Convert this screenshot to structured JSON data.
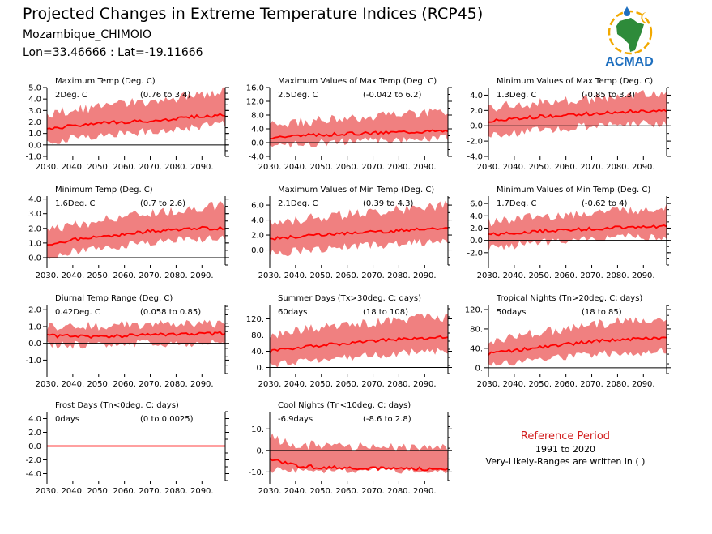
{
  "header": {
    "title": "Projected Changes in Extreme Temperature Indices (RCP45)",
    "location": "Mozambique_CHIMOIO",
    "coords": "Lon=33.46666 : Lat=-19.11666"
  },
  "logo": {
    "text": "ACMAD",
    "icon": "africa-map-logo-icon"
  },
  "reference": {
    "title": "Reference Period",
    "years": "1991 to 2020",
    "note": "Very-Likely-Ranges are written in ( )"
  },
  "colors": {
    "line": "#ff0000",
    "band": "#f08080",
    "zero": "#000000",
    "accent": "#d21e1e"
  },
  "x_ticks": [
    "2030.",
    "2040.",
    "2050.",
    "2060.",
    "2070.",
    "2080.",
    "2090."
  ],
  "chart_data": [
    {
      "type": "area",
      "title": "Maximum Temp (Deg. C)",
      "mean_label": "2Deg. C",
      "range_label": "(0.76 to 3.4)",
      "xlim": [
        2030,
        2099
      ],
      "ylim": [
        -1.0,
        5.0
      ],
      "yticks": [
        "5.0",
        "4.0",
        "3.0",
        "2.0",
        "1.0",
        "0.0",
        "-1.0"
      ],
      "ytick_values": [
        5,
        4,
        3,
        2,
        1,
        0,
        -1
      ],
      "x": [
        2030,
        2040,
        2050,
        2060,
        2070,
        2080,
        2090,
        2099
      ],
      "series": [
        {
          "values": [
            1.3,
            1.7,
            1.9,
            2.0,
            2.1,
            2.3,
            2.5,
            2.6
          ]
        },
        {
          "name": "low",
          "values": [
            0.2,
            0.6,
            0.8,
            1.0,
            1.2,
            1.4,
            1.6,
            1.8
          ]
        },
        {
          "name": "high",
          "values": [
            2.7,
            3.0,
            3.3,
            3.6,
            3.8,
            4.1,
            4.4,
            4.7
          ]
        }
      ]
    },
    {
      "type": "area",
      "title": "Maximum Values of Max Temp (Deg. C)",
      "mean_label": "2.5Deg. C",
      "range_label": "(-0.042 to 6.2)",
      "xlim": [
        2030,
        2099
      ],
      "ylim": [
        -4.0,
        16.0
      ],
      "yticks": [
        "16.0",
        "12.0",
        "8.0",
        "4.0",
        "0.0",
        "-4.0"
      ],
      "ytick_values": [
        16,
        12,
        8,
        4,
        0,
        -4
      ],
      "x": [
        2030,
        2040,
        2050,
        2060,
        2070,
        2080,
        2090,
        2099
      ],
      "series": [
        {
          "values": [
            1.6,
            2.0,
            2.3,
            2.6,
            2.8,
            3.1,
            3.3,
            3.4
          ]
        },
        {
          "name": "low",
          "values": [
            -1.0,
            -0.5,
            0.0,
            0.3,
            0.5,
            0.8,
            1.0,
            1.2
          ]
        },
        {
          "name": "high",
          "values": [
            5.0,
            6.0,
            6.5,
            7.0,
            7.5,
            8.0,
            8.5,
            9.0
          ]
        }
      ]
    },
    {
      "type": "area",
      "title": "Minimum Values of Max Temp (Deg. C)",
      "mean_label": "1.3Deg. C",
      "range_label": "(-0.85 to 3.3)",
      "xlim": [
        2030,
        2099
      ],
      "ylim": [
        -4.0,
        5.0
      ],
      "yticks": [
        "4.0",
        "2.0",
        "0.0",
        "-2.0",
        "-4.0"
      ],
      "ytick_values": [
        4,
        2,
        0,
        -2,
        -4
      ],
      "x": [
        2030,
        2040,
        2050,
        2060,
        2070,
        2080,
        2090,
        2099
      ],
      "series": [
        {
          "values": [
            0.6,
            0.9,
            1.2,
            1.4,
            1.6,
            1.8,
            1.9,
            1.9
          ]
        },
        {
          "name": "low",
          "values": [
            -1.3,
            -1.0,
            -0.6,
            -0.3,
            0.0,
            0.2,
            0.3,
            0.3
          ]
        },
        {
          "name": "high",
          "values": [
            2.4,
            2.8,
            3.0,
            3.3,
            3.5,
            3.8,
            4.0,
            4.2
          ]
        }
      ]
    },
    {
      "type": "area",
      "title": "Minimum Temp (Deg. C)",
      "mean_label": "1.6Deg. C",
      "range_label": "(0.7 to 2.6)",
      "xlim": [
        2030,
        2099
      ],
      "ylim": [
        -0.5,
        4.2
      ],
      "yticks": [
        "4.0",
        "3.0",
        "2.0",
        "1.0",
        "0.0"
      ],
      "ytick_values": [
        4,
        3,
        2,
        1,
        0
      ],
      "x": [
        2030,
        2040,
        2050,
        2060,
        2070,
        2080,
        2090,
        2099
      ],
      "series": [
        {
          "values": [
            0.9,
            1.2,
            1.4,
            1.6,
            1.8,
            1.9,
            2.0,
            2.0
          ]
        },
        {
          "name": "low",
          "values": [
            0.1,
            0.4,
            0.6,
            0.8,
            1.0,
            1.2,
            1.3,
            1.4
          ]
        },
        {
          "name": "high",
          "values": [
            1.8,
            2.2,
            2.5,
            2.8,
            3.0,
            3.2,
            3.4,
            3.6
          ]
        }
      ]
    },
    {
      "type": "area",
      "title": "Maximum Values of Min Temp (Deg. C)",
      "mean_label": "2.1Deg. C",
      "range_label": "(0.39 to 4.3)",
      "xlim": [
        2030,
        2099
      ],
      "ylim": [
        -2.0,
        7.2
      ],
      "yticks": [
        "6.0",
        "4.0",
        "2.0",
        "0.0"
      ],
      "ytick_values": [
        6,
        4,
        2,
        0
      ],
      "x": [
        2030,
        2040,
        2050,
        2060,
        2070,
        2080,
        2090,
        2099
      ],
      "series": [
        {
          "values": [
            1.5,
            1.8,
            2.0,
            2.2,
            2.4,
            2.6,
            2.8,
            3.0
          ]
        },
        {
          "name": "low",
          "values": [
            -0.5,
            -0.2,
            0.1,
            0.4,
            0.6,
            0.8,
            1.0,
            1.2
          ]
        },
        {
          "name": "high",
          "values": [
            3.6,
            4.0,
            4.4,
            4.8,
            5.1,
            5.4,
            5.7,
            6.0
          ]
        }
      ]
    },
    {
      "type": "area",
      "title": "Minimum Values of Min Temp (Deg. C)",
      "mean_label": "1.7Deg. C",
      "range_label": "(-0.62 to 4)",
      "xlim": [
        2030,
        2099
      ],
      "ylim": [
        -4.0,
        7.2
      ],
      "yticks": [
        "6.0",
        "4.0",
        "2.0",
        "0.0",
        "-2.0"
      ],
      "ytick_values": [
        6,
        4,
        2,
        0,
        -2
      ],
      "x": [
        2030,
        2040,
        2050,
        2060,
        2070,
        2080,
        2090,
        2099
      ],
      "series": [
        {
          "values": [
            0.9,
            1.2,
            1.5,
            1.7,
            1.9,
            2.1,
            2.3,
            2.3
          ]
        },
        {
          "name": "low",
          "values": [
            -1.2,
            -0.8,
            -0.4,
            -0.1,
            0.2,
            0.4,
            0.6,
            0.6
          ]
        },
        {
          "name": "high",
          "values": [
            3.0,
            3.4,
            3.8,
            4.2,
            4.5,
            4.8,
            5.1,
            5.3
          ]
        }
      ]
    },
    {
      "type": "area",
      "title": "Diurnal Temp Range (Deg. C)",
      "mean_label": "0.42Deg. C",
      "range_label": "(0.058 to 0.85)",
      "xlim": [
        2030,
        2099
      ],
      "ylim": [
        -1.8,
        2.3
      ],
      "yticks": [
        "2.0",
        "1.0",
        "0.0",
        "-1.0"
      ],
      "ytick_values": [
        2,
        1,
        0,
        -1
      ],
      "x": [
        2030,
        2040,
        2050,
        2060,
        2070,
        2080,
        2090,
        2099
      ],
      "series": [
        {
          "values": [
            0.45,
            0.45,
            0.4,
            0.45,
            0.5,
            0.5,
            0.55,
            0.6
          ]
        },
        {
          "name": "low",
          "values": [
            -0.1,
            -0.1,
            -0.1,
            0.0,
            0.0,
            0.0,
            0.0,
            0.1
          ]
        },
        {
          "name": "high",
          "values": [
            1.0,
            1.0,
            1.0,
            1.1,
            1.1,
            1.1,
            1.2,
            1.2
          ]
        }
      ]
    },
    {
      "type": "area",
      "title": "Summer Days (Tx>30deg. C; days)",
      "mean_label": "60days",
      "range_label": "(18 to 108)",
      "xlim": [
        2030,
        2099
      ],
      "ylim": [
        -15,
        155
      ],
      "yticks": [
        "120.",
        "80.",
        "40.",
        "0."
      ],
      "ytick_values": [
        120,
        80,
        40,
        0
      ],
      "x": [
        2030,
        2040,
        2050,
        2060,
        2070,
        2080,
        2090,
        2099
      ],
      "series": [
        {
          "values": [
            40,
            48,
            55,
            60,
            65,
            70,
            72,
            75
          ]
        },
        {
          "name": "low",
          "values": [
            5,
            15,
            20,
            25,
            30,
            35,
            38,
            40
          ]
        },
        {
          "name": "high",
          "values": [
            80,
            90,
            98,
            105,
            110,
            118,
            122,
            125
          ]
        }
      ]
    },
    {
      "type": "area",
      "title": "Tropical Nights (Tn>20deg. C; days)",
      "mean_label": "50days",
      "range_label": "(18 to 85)",
      "xlim": [
        2030,
        2099
      ],
      "ylim": [
        -12,
        130
      ],
      "yticks": [
        "120.",
        "80.",
        "40.",
        "0."
      ],
      "ytick_values": [
        120,
        80,
        40,
        0
      ],
      "x": [
        2030,
        2040,
        2050,
        2060,
        2070,
        2080,
        2090,
        2099
      ],
      "series": [
        {
          "values": [
            28,
            36,
            42,
            48,
            54,
            58,
            60,
            62
          ]
        },
        {
          "name": "low",
          "values": [
            5,
            12,
            18,
            22,
            26,
            30,
            32,
            34
          ]
        },
        {
          "name": "high",
          "values": [
            55,
            65,
            72,
            80,
            88,
            95,
            100,
            105
          ]
        }
      ]
    },
    {
      "type": "area",
      "title": "Frost Days (Tn<0deg. C; days)",
      "mean_label": "0days",
      "range_label": "(0 to 0.0025)",
      "xlim": [
        2030,
        2099
      ],
      "ylim": [
        -5.0,
        5.0
      ],
      "yticks": [
        "4.0",
        "2.0",
        "0.0",
        "-2.0",
        "-4.0"
      ],
      "ytick_values": [
        4,
        2,
        0,
        -2,
        -4
      ],
      "x": [
        2030,
        2099
      ],
      "series": [
        {
          "values": [
            0,
            0
          ]
        },
        {
          "name": "low",
          "values": [
            0,
            0
          ]
        },
        {
          "name": "high",
          "values": [
            0.0025,
            0.0025
          ]
        }
      ]
    },
    {
      "type": "area",
      "title": "Cool Nights (Tn<10deg. C; days)",
      "mean_label": "-6.9days",
      "range_label": "(-8.6 to 2.8)",
      "xlim": [
        2030,
        2099
      ],
      "ylim": [
        -14,
        18
      ],
      "yticks": [
        "10.",
        "0.",
        "-10."
      ],
      "ytick_values": [
        10,
        0,
        -10
      ],
      "x": [
        2030,
        2040,
        2050,
        2060,
        2070,
        2080,
        2090,
        2099
      ],
      "series": [
        {
          "values": [
            -4,
            -7,
            -8,
            -8,
            -8.3,
            -8.4,
            -8.5,
            -8.5
          ]
        },
        {
          "name": "low",
          "values": [
            -9,
            -9,
            -9,
            -9,
            -9,
            -9,
            -9,
            -9
          ]
        },
        {
          "name": "high",
          "values": [
            6,
            3,
            2,
            2,
            1.5,
            1.5,
            1.5,
            1.5
          ]
        }
      ]
    }
  ]
}
